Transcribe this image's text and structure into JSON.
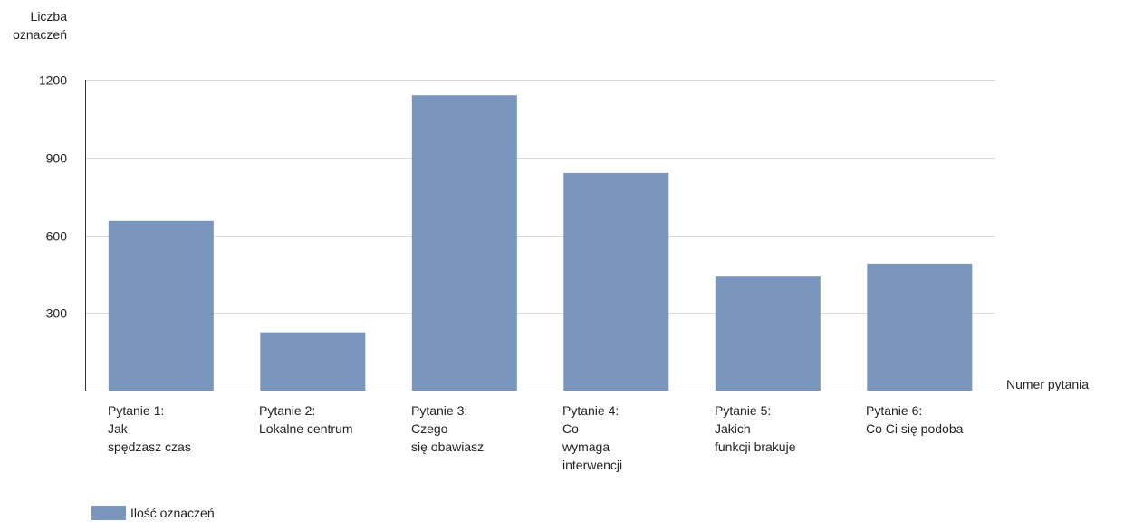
{
  "chart_data": {
    "type": "bar",
    "ylabel_lines": [
      "Liczba",
      "oznaczeń"
    ],
    "xlabel": "Numer pytania",
    "categories": [
      [
        "Pytanie 1:",
        "Jak",
        "spędzasz czas"
      ],
      [
        "Pytanie 2:",
        "Lokalne centrum"
      ],
      [
        "Pytanie 3:",
        "Czego",
        "się obawiasz"
      ],
      [
        "Pytanie 4:",
        "Co",
        "wymaga",
        "interwencji"
      ],
      [
        "Pytanie 5:",
        "Jakich",
        "funkcji brakuje"
      ],
      [
        "Pytanie 6:",
        "Co Ci się podoba"
      ]
    ],
    "series": [
      {
        "name": "Ilość oznaczeń",
        "color": "#7a96bd",
        "values": [
          655,
          225,
          1140,
          840,
          440,
          490
        ]
      }
    ],
    "ylim": [
      0,
      1200
    ],
    "yticks": [
      300,
      600,
      900,
      1200
    ],
    "grid": true,
    "legend_position": "bottom-left"
  }
}
